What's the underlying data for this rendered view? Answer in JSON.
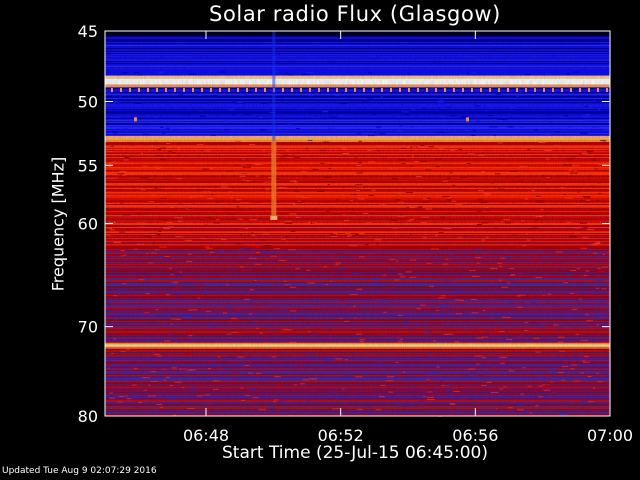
{
  "chart_data": {
    "type": "heatmap",
    "title": "Solar radio Flux (Glasgow)",
    "xlabel": "Start Time (25-Jul-15 06:45:00)",
    "ylabel": "Frequency [MHz]",
    "x_ticks": [
      "06:48",
      "06:52",
      "06:56",
      "07:00"
    ],
    "y_ticks": [
      "45",
      "50",
      "55",
      "60",
      "70",
      "80"
    ],
    "xlim": [
      "06:45:00",
      "07:00:00"
    ],
    "ylim": [
      45,
      80
    ],
    "y_scale": "log",
    "colorscale": [
      "#000033",
      "#1a1aff",
      "#3a2a99",
      "#7a1020",
      "#cc0000",
      "#ff2200",
      "#ff7722",
      "#ffdd88"
    ],
    "bands": [
      {
        "from_mhz": 45.0,
        "to_mhz": 47.5,
        "level": "blue"
      },
      {
        "from_mhz": 48.2,
        "to_mhz": 48.8,
        "level": "white"
      },
      {
        "from_mhz": 49.0,
        "to_mhz": 52.5,
        "level": "blue"
      },
      {
        "from_mhz": 52.6,
        "to_mhz": 53.0,
        "level": "orange"
      },
      {
        "from_mhz": 53.0,
        "to_mhz": 62.0,
        "level": "red"
      },
      {
        "from_mhz": 62.0,
        "to_mhz": 71.5,
        "level": "purple-red"
      },
      {
        "from_mhz": 71.8,
        "to_mhz": 72.2,
        "level": "yellow"
      },
      {
        "from_mhz": 72.3,
        "to_mhz": 80.0,
        "level": "purple-red"
      }
    ],
    "events": [
      {
        "time": "06:50:00",
        "from_mhz": 53.0,
        "to_mhz": 59.5,
        "level": "orange"
      }
    ]
  },
  "footer": {
    "updated": "Updated Tue Aug  9 02:07:29 2016"
  }
}
